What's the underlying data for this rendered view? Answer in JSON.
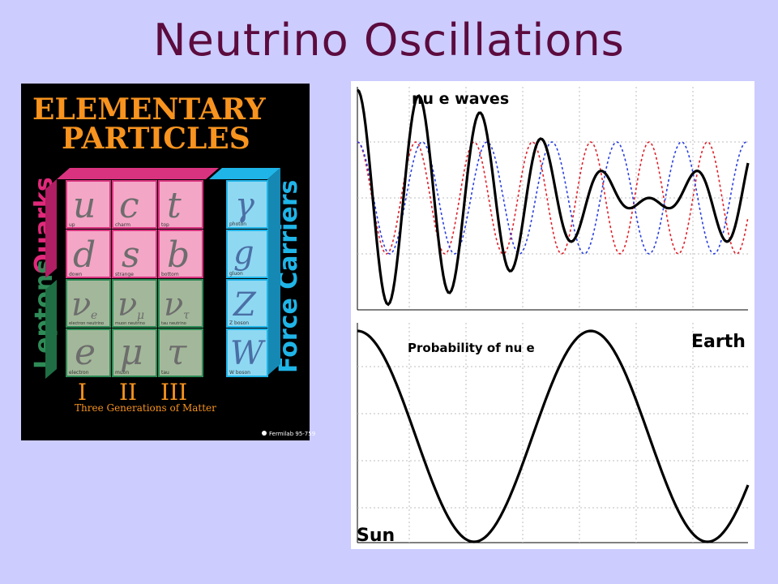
{
  "slide": {
    "title": "Neutrino Oscillations"
  },
  "poster": {
    "title_line1": "ELEMENTARY",
    "title_line2": "PARTICLES",
    "side_quarks": "Quarks",
    "side_leptons": "Leptons",
    "side_force": "Force Carriers",
    "generations_numerals": [
      "I",
      "II",
      "III"
    ],
    "generations_caption": "Three Generations of Matter",
    "credit": "Fermilab 95-759",
    "quarks_row1": [
      {
        "symbol": "u",
        "name": "up"
      },
      {
        "symbol": "c",
        "name": "charm"
      },
      {
        "symbol": "t",
        "name": "top"
      }
    ],
    "quarks_row2": [
      {
        "symbol": "d",
        "name": "down"
      },
      {
        "symbol": "s",
        "name": "strange"
      },
      {
        "symbol": "b",
        "name": "bottom"
      }
    ],
    "leptons_row1": [
      {
        "symbol": "ν",
        "sub": "e",
        "name": "electron neutrino"
      },
      {
        "symbol": "ν",
        "sub": "μ",
        "name": "muon neutrino"
      },
      {
        "symbol": "ν",
        "sub": "τ",
        "name": "tau neutrino"
      }
    ],
    "leptons_row2": [
      {
        "symbol": "e",
        "name": "electron"
      },
      {
        "symbol": "μ",
        "name": "muon"
      },
      {
        "symbol": "τ",
        "name": "tau"
      }
    ],
    "force_carriers": [
      {
        "symbol": "γ",
        "name": "photon"
      },
      {
        "symbol": "g",
        "name": "gluon"
      },
      {
        "symbol": "Z",
        "name": "Z boson"
      },
      {
        "symbol": "W",
        "name": "W boson"
      }
    ],
    "colors": {
      "background": "#000000",
      "title": "#F7931E",
      "quark_box": "#F4A6C6",
      "quark_side": "#E2297B",
      "lepton_box": "#A3B89A",
      "lepton_side": "#2E8B57",
      "force_box": "#8FD8F2",
      "force_side": "#1FB5E8"
    }
  },
  "plots": {
    "top": {
      "label": "nu e waves",
      "colors": {
        "combined": "#000000",
        "wave_red": "#E0202A",
        "wave_blue": "#2A3FE0"
      }
    },
    "bottom": {
      "label_prob": "Probability of nu e",
      "label_earth": "Earth",
      "label_sun": "Sun"
    }
  }
}
